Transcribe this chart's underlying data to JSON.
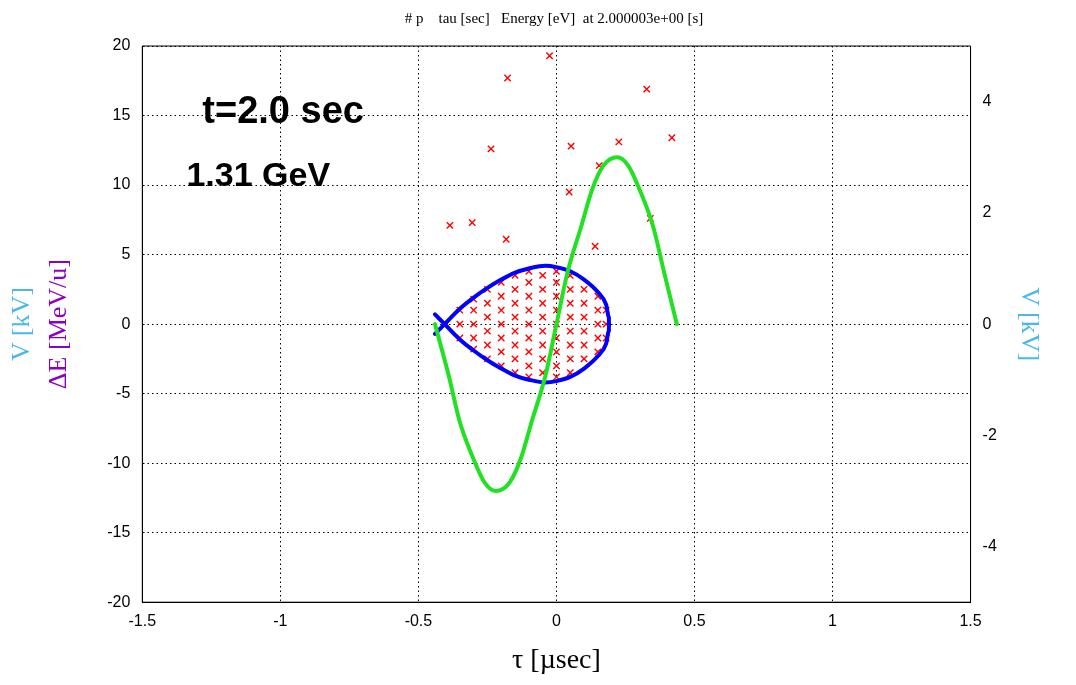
{
  "chart_data": {
    "type": "scatter",
    "title": "# p    tau [sec]   Energy [eV]  at 2.000003e+00 [s]",
    "xlabel": "τ [µsec]",
    "ylabel": "ΔE [MeV/u]",
    "y2label": "V [kV]",
    "annotations": [
      "t=2.0 sec",
      "1.31 GeV",
      "V [kV]"
    ],
    "xlim": [
      -1.5,
      1.5
    ],
    "xticks": [
      -1.5,
      -1,
      -0.5,
      0,
      0.5,
      1,
      1.5
    ],
    "ylim": [
      -20,
      20
    ],
    "yticks": [
      -20,
      -15,
      -10,
      -5,
      0,
      5,
      10,
      15,
      20
    ],
    "y2lim": [
      -5,
      5
    ],
    "y2ticks": [
      -4,
      -2,
      0,
      2,
      4
    ],
    "grid": true,
    "legend": false,
    "series": [
      {
        "color": "#ff0000",
        "marker": "cross",
        "x": [
          -0.025,
          -0.177,
          0.327,
          -0.237,
          0.053,
          0.226,
          0.418,
          0.155,
          0.046,
          -0.386,
          -0.305,
          -0.182,
          0.34,
          0.14,
          -0.4,
          -0.35,
          -0.35,
          -0.35,
          -0.3,
          -0.3,
          -0.3,
          -0.3,
          -0.3,
          -0.25,
          -0.25,
          -0.25,
          -0.25,
          -0.25,
          -0.25,
          -0.2,
          -0.2,
          -0.2,
          -0.2,
          -0.2,
          -0.2,
          -0.2,
          -0.15,
          -0.15,
          -0.15,
          -0.15,
          -0.15,
          -0.15,
          -0.15,
          -0.15,
          -0.1,
          -0.1,
          -0.1,
          -0.1,
          -0.1,
          -0.1,
          -0.1,
          -0.1,
          -0.1,
          -0.05,
          -0.05,
          -0.05,
          -0.05,
          -0.05,
          -0.05,
          -0.05,
          -0.05,
          0,
          0,
          0,
          0,
          0,
          0,
          0,
          0,
          0,
          0.05,
          0.05,
          0.05,
          0.05,
          0.05,
          0.05,
          0.05,
          0.05,
          0.1,
          0.1,
          0.1,
          0.1,
          0.1,
          0.1,
          0.15,
          0.15,
          0.15,
          0.15,
          0.15,
          0.18,
          0.18,
          0.18
        ],
        "values": [
          19.3,
          17.7,
          16.9,
          12.6,
          12.8,
          13.1,
          13.4,
          11.4,
          9.5,
          7.1,
          7.3,
          6.1,
          7.6,
          5.6,
          0,
          -1,
          0,
          1,
          -1.8,
          -1,
          0,
          1,
          1.8,
          -2.5,
          -1.5,
          -0.5,
          0.5,
          1.5,
          2.5,
          -3,
          -2,
          -1,
          0,
          1,
          2,
          3,
          -3.5,
          -2.5,
          -1.5,
          -0.5,
          0.5,
          1.5,
          2.5,
          3.5,
          -3.8,
          -3,
          -2,
          -1,
          0,
          1,
          2,
          3,
          3.8,
          -3.5,
          -2.5,
          -1.5,
          -0.5,
          0.5,
          1.5,
          2.5,
          3.5,
          -3.8,
          -3,
          -2,
          -1,
          0,
          1,
          2,
          3,
          3.8,
          -3.5,
          -2.5,
          -1.5,
          -0.5,
          0.5,
          1.5,
          2.5,
          3.5,
          -2.5,
          -1.5,
          -0.5,
          0.5,
          1.5,
          2.5,
          -2,
          -1,
          0,
          1,
          2,
          -1,
          0,
          1
        ]
      },
      {
        "type": "line",
        "color": "#0000ff",
        "marker": "none",
        "x": [
          -0.44,
          -0.405,
          -0.35,
          -0.3,
          -0.25,
          -0.2,
          -0.15,
          -0.1,
          -0.04,
          0,
          0.05,
          0.1,
          0.15,
          0.18,
          0.19,
          0.19
        ],
        "values": [
          -0.7,
          0,
          1.1,
          1.9,
          2.6,
          3.2,
          3.7,
          4,
          4.2,
          4.1,
          3.8,
          3.2,
          2.3,
          1.4,
          0.5,
          0
        ]
      },
      {
        "type": "line",
        "color": "#0000ff",
        "marker": "none",
        "x": [
          -0.44,
          -0.405,
          -0.35,
          -0.3,
          -0.25,
          -0.2,
          -0.15,
          -0.1,
          -0.04,
          0,
          0.05,
          0.1,
          0.15,
          0.18,
          0.19,
          0.19
        ],
        "values": [
          0.7,
          0,
          -1.1,
          -1.9,
          -2.6,
          -3.2,
          -3.7,
          -4,
          -4.2,
          -4.1,
          -3.8,
          -3.2,
          -2.3,
          -1.4,
          -0.5,
          0
        ]
      },
      {
        "type": "line",
        "color": "#22e022",
        "marker": "none",
        "axis": "y2",
        "x": [
          -0.44,
          -0.39,
          -0.35,
          -0.3,
          -0.26,
          -0.22,
          -0.17,
          -0.13,
          -0.09,
          -0.04,
          0,
          0.04,
          0.09,
          0.13,
          0.17,
          0.22,
          0.26,
          0.3,
          0.35,
          0.39,
          0.436
        ],
        "values": [
          0,
          -0.93,
          -1.76,
          -2.43,
          -2.85,
          -3,
          -2.85,
          -2.43,
          -1.76,
          -0.93,
          0,
          0.93,
          1.76,
          2.43,
          2.85,
          3,
          2.85,
          2.43,
          1.76,
          0.93,
          0
        ]
      }
    ]
  }
}
